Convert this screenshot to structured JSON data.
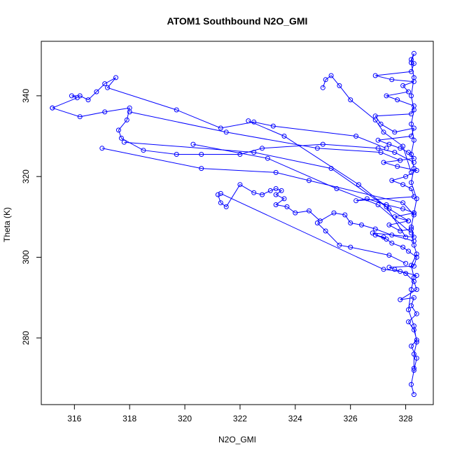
{
  "chart_data": {
    "type": "line",
    "title": "ATOM1 Southbound N2O_GMI",
    "xlabel": "N2O_GMI",
    "ylabel": "Theta (K)",
    "xlim": [
      314.8,
      329.0
    ],
    "ylim": [
      263.5,
      353.5
    ],
    "xticks": [
      316,
      318,
      320,
      322,
      324,
      326,
      328
    ],
    "yticks": [
      280,
      300,
      320,
      340
    ],
    "grid": false,
    "series_color": "#0000ff",
    "series": [
      {
        "marker": "open-circle",
        "points": [
          [
            328.3,
            266
          ],
          [
            328.2,
            268.5
          ],
          [
            328.3,
            272
          ],
          [
            328.4,
            275
          ],
          [
            328.2,
            278
          ],
          [
            328.4,
            279.5
          ],
          [
            328.3,
            282
          ],
          [
            328.1,
            284
          ],
          [
            328.4,
            286
          ],
          [
            328.2,
            288
          ],
          [
            328.3,
            290
          ],
          [
            327.8,
            289.5
          ],
          [
            328.4,
            292
          ],
          [
            328.3,
            294
          ],
          [
            328.0,
            296
          ],
          [
            327.6,
            297
          ],
          [
            327.4,
            297.5
          ],
          [
            328.3,
            297.8
          ],
          [
            328.4,
            300
          ],
          [
            328.1,
            301.5
          ],
          [
            327.9,
            302.5
          ],
          [
            327.5,
            303.5
          ],
          [
            327.2,
            305
          ],
          [
            326.9,
            305.5
          ],
          [
            327.3,
            304.5
          ],
          [
            326.8,
            306
          ],
          [
            328.3,
            305
          ],
          [
            328.2,
            307
          ],
          [
            327.8,
            306.5
          ],
          [
            327.4,
            308
          ],
          [
            328.1,
            309
          ],
          [
            327.6,
            310
          ],
          [
            328.3,
            311
          ],
          [
            327.9,
            312
          ],
          [
            327.3,
            313
          ],
          [
            326.6,
            314.5
          ],
          [
            326.2,
            314
          ],
          [
            328.3,
            315
          ],
          [
            328.2,
            317
          ],
          [
            327.9,
            318
          ],
          [
            327.5,
            319
          ],
          [
            328.0,
            320
          ],
          [
            328.4,
            321.5
          ],
          [
            327.7,
            322.5
          ],
          [
            327.2,
            323.5
          ],
          [
            328.3,
            324.5
          ],
          [
            328.1,
            326
          ],
          [
            327.8,
            327
          ],
          [
            327.4,
            328
          ],
          [
            327.0,
            329
          ],
          [
            328.2,
            330
          ],
          [
            328.3,
            332
          ],
          [
            327.6,
            331
          ],
          [
            327.1,
            333
          ],
          [
            326.9,
            335
          ],
          [
            328.2,
            335.5
          ],
          [
            328.3,
            337.5
          ],
          [
            327.7,
            339
          ],
          [
            327.3,
            340
          ],
          [
            328.1,
            341
          ],
          [
            327.9,
            342.5
          ],
          [
            328.3,
            343.5
          ],
          [
            327.5,
            344
          ],
          [
            326.9,
            345
          ],
          [
            328.2,
            346
          ],
          [
            328.3,
            348
          ],
          [
            328.2,
            349
          ],
          [
            328.3,
            350.5
          ],
          [
            328.2,
            348.2
          ],
          [
            328.3,
            344.5
          ],
          [
            328.2,
            340
          ],
          [
            328.3,
            336.5
          ],
          [
            328.2,
            333
          ],
          [
            328.3,
            329
          ],
          [
            328.2,
            325.5
          ],
          [
            328.3,
            322
          ],
          [
            328.2,
            318.5
          ],
          [
            328.4,
            314.5
          ],
          [
            328.3,
            311
          ],
          [
            328.2,
            307.5
          ],
          [
            328.3,
            303
          ],
          [
            328.4,
            300.8
          ],
          [
            328.2,
            298
          ],
          [
            328.3,
            295
          ],
          [
            328.2,
            292
          ],
          [
            328.1,
            287
          ],
          [
            328.3,
            283
          ],
          [
            328.4,
            279
          ],
          [
            328.3,
            276
          ],
          [
            328.3,
            272.5
          ]
        ]
      },
      {
        "marker": "open-circle",
        "points": [
          [
            315.2,
            337
          ],
          [
            316.1,
            339.5
          ],
          [
            315.9,
            340
          ],
          [
            316.2,
            340
          ],
          [
            316.5,
            339
          ],
          [
            316.8,
            341
          ],
          [
            317.1,
            343
          ],
          [
            317.5,
            344.5
          ],
          [
            317.2,
            342
          ],
          [
            319.7,
            336.5
          ],
          [
            321.3,
            332
          ],
          [
            322.5,
            333.5
          ],
          [
            323.2,
            332.5
          ],
          [
            326.2,
            330
          ],
          [
            327.3,
            327
          ]
        ]
      },
      {
        "marker": "open-circle",
        "points": [
          [
            315.2,
            337
          ],
          [
            316.2,
            334.8
          ],
          [
            317.1,
            336
          ],
          [
            318.0,
            337
          ],
          [
            317.9,
            334
          ],
          [
            317.6,
            331.5
          ],
          [
            317.7,
            329.5
          ],
          [
            318.5,
            326.5
          ],
          [
            319.7,
            325.5
          ],
          [
            320.6,
            325.5
          ],
          [
            322.0,
            325.5
          ],
          [
            322.8,
            327
          ],
          [
            325.0,
            328
          ],
          [
            327.0,
            327
          ],
          [
            327.6,
            326
          ],
          [
            328.3,
            323.5
          ]
        ]
      },
      {
        "marker": "open-circle",
        "points": [
          [
            317.0,
            327
          ],
          [
            320.6,
            322
          ],
          [
            323.3,
            321
          ],
          [
            324.5,
            319
          ],
          [
            327.9,
            313.5
          ],
          [
            328.3,
            310.5
          ]
        ]
      },
      {
        "marker": "open-circle",
        "points": [
          [
            321.2,
            315.5
          ],
          [
            321.3,
            313.5
          ],
          [
            321.5,
            312.5
          ],
          [
            322.0,
            318
          ],
          [
            322.5,
            316
          ],
          [
            322.8,
            315.5
          ],
          [
            323.1,
            316.5
          ],
          [
            323.3,
            317
          ],
          [
            323.5,
            316.5
          ],
          [
            323.3,
            315.5
          ],
          [
            323.6,
            314.5
          ],
          [
            323.3,
            313
          ],
          [
            323.7,
            312.5
          ],
          [
            324.0,
            311
          ],
          [
            324.5,
            311.5
          ],
          [
            324.9,
            309
          ],
          [
            325.4,
            311
          ],
          [
            325.8,
            310.5
          ],
          [
            326.0,
            308.5
          ],
          [
            326.4,
            308
          ],
          [
            326.9,
            307
          ],
          [
            327.5,
            305.5
          ],
          [
            328.3,
            304
          ]
        ]
      },
      {
        "marker": "open-circle",
        "points": [
          [
            321.3,
            315.8
          ],
          [
            327.2,
            297
          ],
          [
            327.8,
            296.5
          ],
          [
            328.4,
            295.5
          ]
        ]
      },
      {
        "marker": "open-circle",
        "points": [
          [
            324.8,
            308.5
          ],
          [
            325.1,
            306.5
          ],
          [
            325.6,
            303
          ],
          [
            326.0,
            302.5
          ],
          [
            327.4,
            300.5
          ],
          [
            328.0,
            298.5
          ]
        ]
      },
      {
        "marker": "open-circle",
        "points": [
          [
            325.0,
            342
          ],
          [
            325.1,
            344
          ],
          [
            325.3,
            345
          ],
          [
            325.6,
            342.5
          ],
          [
            326.0,
            339
          ],
          [
            326.9,
            334
          ],
          [
            327.2,
            331
          ],
          [
            327.9,
            327.5
          ],
          [
            328.2,
            321
          ]
        ]
      },
      {
        "marker": "open-circle",
        "points": [
          [
            318.0,
            336
          ],
          [
            321.5,
            331
          ],
          [
            324.8,
            327
          ],
          [
            327.1,
            326
          ],
          [
            327.8,
            324
          ]
        ]
      },
      {
        "marker": "open-circle",
        "points": [
          [
            317.8,
            328.5
          ],
          [
            322.5,
            326
          ],
          [
            325.3,
            322
          ],
          [
            327.4,
            312
          ],
          [
            328.1,
            309
          ]
        ]
      },
      {
        "marker": "open-circle",
        "points": [
          [
            322.3,
            333.8
          ],
          [
            323.6,
            330
          ],
          [
            326.3,
            318
          ],
          [
            327.3,
            312.5
          ],
          [
            328.0,
            305
          ]
        ]
      },
      {
        "marker": "open-circle",
        "points": [
          [
            320.3,
            328
          ],
          [
            323.0,
            324.5
          ],
          [
            325.5,
            317
          ],
          [
            327.0,
            313
          ],
          [
            328.2,
            306
          ]
        ]
      }
    ]
  }
}
